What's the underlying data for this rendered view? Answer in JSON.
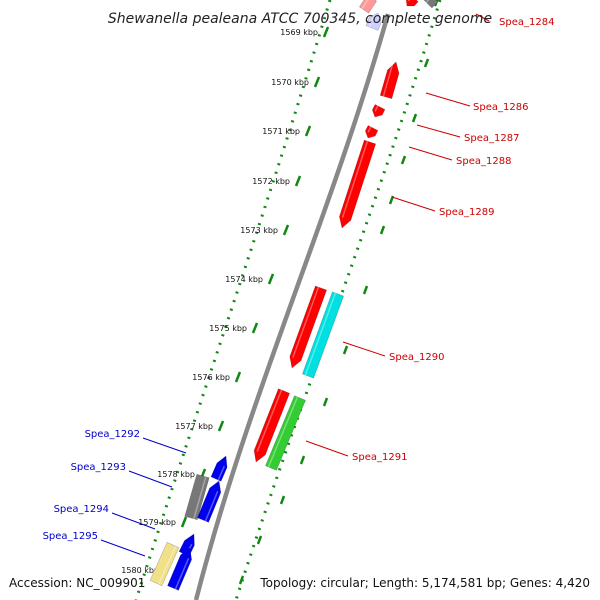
{
  "title": "Shewanella pealeana ATCC 700345, complete genome",
  "footer": {
    "accession": "Accession: NC_009901",
    "topology": "Topology: circular; Length: 5,174,581 bp; Genes: 4,420"
  },
  "colors": {
    "backbone": "#888888",
    "ruler": "#118811",
    "label_right": "#cc0000",
    "label_left": "#0000cc",
    "red": "#ff0000",
    "blue": "#0000ee",
    "gray": "#777777",
    "cyan": "#00e0e0",
    "green": "#33cc33",
    "khaki": "#f0e08a",
    "lavender": "#d0d0ff",
    "pink": "#ff9999"
  },
  "ticks": [
    {
      "kbp": 1569,
      "label": "1569 kbp"
    },
    {
      "kbp": 1570,
      "label": "1570 kbp"
    },
    {
      "kbp": 1571,
      "label": "1571 kbp"
    },
    {
      "kbp": 1572,
      "label": "1572 kbp"
    },
    {
      "kbp": 1573,
      "label": "1573 kbp"
    },
    {
      "kbp": 1574,
      "label": "1574 kbp"
    },
    {
      "kbp": 1575,
      "label": "1575 kbp"
    },
    {
      "kbp": 1576,
      "label": "1576 kbp"
    },
    {
      "kbp": 1577,
      "label": "1577 kbp"
    },
    {
      "kbp": 1578,
      "label": "1578 kbp"
    },
    {
      "kbp": 1579,
      "label": "1579 kbp"
    },
    {
      "kbp": 1580,
      "label": "1580 kbp"
    }
  ],
  "gene_labels_right": [
    "Spea_1284",
    "Spea_1286",
    "Spea_1287",
    "Spea_1288",
    "Spea_1289",
    "Spea_1290",
    "Spea_1291"
  ],
  "gene_labels_left": [
    "Spea_1292",
    "Spea_1293",
    "Spea_1294",
    "Spea_1295"
  ]
}
